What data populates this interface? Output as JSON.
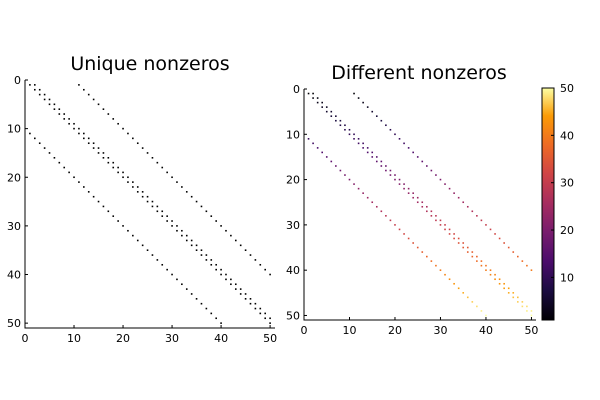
{
  "chart_data": [
    {
      "type": "heatmap",
      "title": "Unique nonzeros",
      "xlabel": "",
      "ylabel": "",
      "matrix_size": 51,
      "xlim": [
        0,
        51
      ],
      "ylim": [
        0,
        51
      ],
      "y_inverted": true,
      "xticks": [
        0,
        10,
        20,
        30,
        40,
        50
      ],
      "yticks": [
        0,
        10,
        20,
        30,
        40,
        50
      ],
      "pattern": {
        "nonzero_offsets": [
          0,
          1,
          10,
          -10
        ],
        "index_start": 1,
        "index_end": 50
      },
      "color_mode": "single",
      "mark_color": "#000000",
      "grid": false,
      "legend": "none"
    },
    {
      "type": "heatmap",
      "title": "Different nonzeros",
      "xlabel": "",
      "ylabel": "",
      "matrix_size": 51,
      "xlim": [
        0,
        51
      ],
      "ylim": [
        0,
        51
      ],
      "y_inverted": true,
      "xticks": [
        0,
        10,
        20,
        30,
        40,
        50
      ],
      "yticks": [
        0,
        10,
        20,
        30,
        40,
        50
      ],
      "pattern": {
        "nonzero_offsets": [
          0,
          1,
          10,
          -10
        ],
        "index_start": 1,
        "index_end": 50
      },
      "color_mode": "value_by_row",
      "colormap": "inferno",
      "colorbar": {
        "range": [
          1,
          50
        ],
        "ticks": [
          10,
          20,
          30,
          40,
          50
        ]
      },
      "grid": false,
      "legend": "none"
    }
  ]
}
